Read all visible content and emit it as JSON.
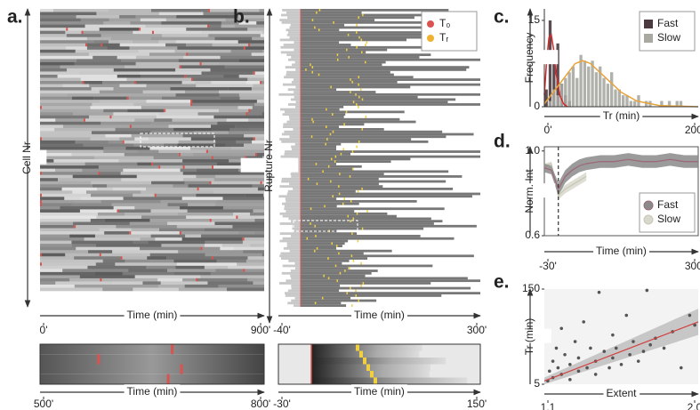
{
  "chart_data": [
    {
      "type": "heatmap",
      "label": "a.",
      "ylabel": "Cell Nr",
      "xlabel": "Time (min)",
      "xlim": [
        0,
        900
      ],
      "xticks": [
        {
          "value": 0,
          "label": "0'"
        },
        {
          "value": 900,
          "label": "900'"
        }
      ],
      "inset": {
        "xlabel": "Time (min)",
        "xlim": [
          500,
          800
        ],
        "xticks": [
          {
            "value": 500,
            "label": "500'"
          },
          {
            "value": 800,
            "label": "800'"
          }
        ]
      }
    },
    {
      "type": "heatmap",
      "label": "b.",
      "ylabel": "Rupture Nr",
      "xlabel": "Time (min)",
      "xlim": [
        -40,
        300
      ],
      "xticks": [
        {
          "value": -40,
          "label": "-40'"
        },
        {
          "value": 300,
          "label": "300'"
        }
      ],
      "legend": [
        {
          "name": "T₀",
          "color": "#d9534f"
        },
        {
          "name": "Tᵣ",
          "color": "#f0b030"
        }
      ],
      "legend_position": "upper right",
      "inset": {
        "xlabel": "Time (min)",
        "xlim": [
          -30,
          150
        ],
        "xticks": [
          {
            "value": -30,
            "label": "-30'"
          },
          {
            "value": 150,
            "label": "150'"
          }
        ]
      }
    },
    {
      "type": "histogram",
      "label": "c.",
      "ylabel": "Frequency",
      "xlabel": "Tr (min)",
      "xlim": [
        0,
        200
      ],
      "xticks": [
        {
          "value": 0,
          "label": "0'"
        },
        {
          "value": 200,
          "label": "200'"
        }
      ],
      "ylim": [
        0,
        17
      ],
      "yticks": [
        0,
        15
      ],
      "legend_position": "upper right",
      "bins": [
        0,
        5,
        10,
        15,
        20,
        25,
        30,
        35,
        40,
        45,
        50,
        55,
        60,
        65,
        70,
        75,
        80,
        85,
        90,
        95,
        100,
        105,
        110,
        115,
        120,
        125,
        130,
        135,
        140,
        145,
        150,
        155,
        160,
        165,
        170,
        175,
        180,
        185,
        190,
        195,
        200
      ],
      "series": [
        {
          "name": "Fast",
          "color": "#4a3a40",
          "values": [
            3,
            15,
            9,
            11,
            4,
            2,
            1,
            0,
            0,
            0,
            0,
            0,
            0,
            0,
            0,
            0,
            0,
            0,
            0,
            0,
            0,
            0,
            0,
            0,
            0,
            0,
            0,
            0,
            0,
            0,
            0,
            0,
            0,
            0,
            0,
            0,
            0,
            0,
            0,
            0
          ],
          "fit": {
            "color": "#d42a2a",
            "x": [
              0,
              3,
              6,
              9,
              12,
              15,
              20,
              25,
              30
            ],
            "values": [
              2,
              8,
              12,
              12.5,
              10,
              6,
              2,
              0.5,
              0
            ]
          }
        },
        {
          "name": "Slow",
          "color": "#a9a9a2",
          "values": [
            0,
            1,
            3,
            2,
            4,
            5,
            6,
            7,
            5,
            9,
            8,
            7,
            8,
            6,
            7,
            5,
            4,
            6,
            3,
            3,
            2,
            2,
            1,
            1,
            2,
            0,
            1,
            1,
            0,
            0,
            1,
            0,
            1,
            0,
            1,
            1,
            0,
            0,
            0,
            0
          ],
          "fit": {
            "color": "#e8a33a",
            "x": [
              0,
              20,
              40,
              50,
              60,
              80,
              100,
              120,
              150,
              200
            ],
            "values": [
              0.5,
              4,
              7.5,
              8,
              7.5,
              5,
              2.5,
              1,
              0.2,
              0
            ]
          }
        }
      ]
    },
    {
      "type": "line",
      "label": "d.",
      "ylabel": "Norm. Int",
      "xlabel": "Time (min)",
      "xlim": [
        -30,
        300
      ],
      "xticks": [
        {
          "value": -30,
          "label": "-30'"
        },
        {
          "value": 300,
          "label": "300'"
        }
      ],
      "ylim": [
        0.6,
        1.02
      ],
      "yticks": [
        0.6,
        {
          "value": 1,
          "label": "1.0"
        }
      ],
      "vline": 0,
      "legend_position": "lower right",
      "x": [
        -30,
        -15,
        0,
        15,
        30,
        45,
        60,
        90,
        120,
        150,
        180,
        210,
        240,
        270,
        300
      ],
      "series": [
        {
          "name": "Fast",
          "color": "#9c6b78",
          "band_color": "#8a8a8a",
          "values": [
            0.92,
            0.91,
            0.82,
            0.88,
            0.91,
            0.93,
            0.94,
            0.95,
            0.95,
            0.96,
            0.95,
            0.95,
            0.96,
            0.95,
            0.95
          ],
          "error": [
            0.02,
            0.02,
            0.03,
            0.03,
            0.03,
            0.03,
            0.03,
            0.03,
            0.03,
            0.03,
            0.03,
            0.03,
            0.03,
            0.03,
            0.03
          ]
        },
        {
          "name": "Slow",
          "color": "#c8c8b8",
          "band_color": "#d8d8cc",
          "values": [
            0.93,
            0.94,
            0.79,
            0.82,
            0.84,
            0.86,
            0.88,
            null,
            null,
            null,
            null,
            null,
            null,
            null,
            null
          ],
          "error": [
            0.01,
            0.01,
            0.02,
            0.02,
            0.02,
            0.02,
            0.02,
            null,
            null,
            null,
            null,
            null,
            null,
            null,
            null
          ]
        }
      ]
    },
    {
      "type": "scatter",
      "label": "e.",
      "ylabel": "Tr (min)",
      "xlabel": "Extent",
      "xlim": [
        1.1,
        2.0
      ],
      "xticks": [
        1.1,
        {
          "value": 2,
          "label": "2.0"
        }
      ],
      "ylim": [
        5,
        150
      ],
      "yticks": [
        5,
        150
      ],
      "color": "#555555",
      "x": [
        1.12,
        1.13,
        1.15,
        1.15,
        1.17,
        1.18,
        1.2,
        1.2,
        1.22,
        1.25,
        1.25,
        1.28,
        1.3,
        1.3,
        1.33,
        1.35,
        1.37,
        1.4,
        1.4,
        1.42,
        1.45,
        1.48,
        1.5,
        1.5,
        1.52,
        1.55,
        1.58,
        1.6,
        1.62,
        1.65,
        1.68,
        1.7,
        1.72,
        1.75,
        1.8,
        1.85,
        1.9,
        1.95,
        1.98
      ],
      "y": [
        10,
        25,
        40,
        15,
        60,
        30,
        20,
        90,
        50,
        35,
        12,
        70,
        25,
        45,
        100,
        30,
        60,
        20,
        40,
        145,
        55,
        30,
        80,
        45,
        60,
        35,
        110,
        50,
        70,
        40,
        55,
        148,
        65,
        75,
        60,
        85,
        30,
        110,
        95
      ],
      "fit": {
        "color": "#d04040",
        "band_color": "#bbbbbb",
        "x": [
          1.1,
          2.0
        ],
        "values": [
          10,
          100
        ],
        "lower": [
          5,
          80
        ],
        "upper": [
          15,
          120
        ]
      }
    }
  ]
}
